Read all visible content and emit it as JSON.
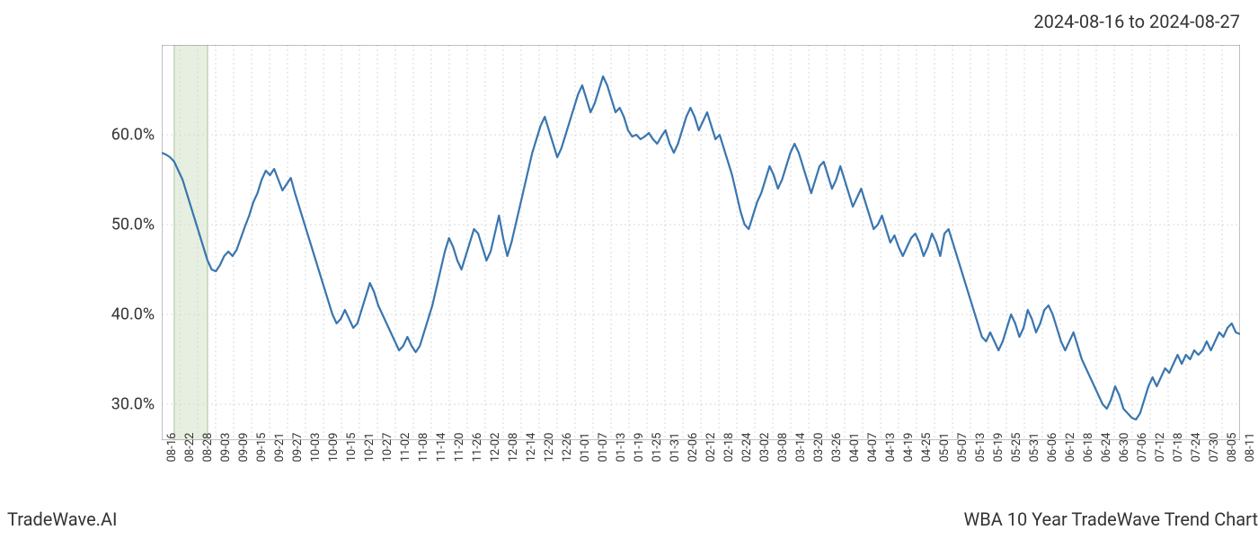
{
  "header": {
    "date_range": "2024-08-16 to 2024-08-27"
  },
  "footer": {
    "brand": "TradeWave.AI",
    "title": "WBA 10 Year TradeWave Trend Chart"
  },
  "chart": {
    "type": "line",
    "background_color": "#ffffff",
    "grid_color": "#d9d9d9",
    "grid_dash": "2,3",
    "border_color": "#808080",
    "line_color": "#3a76af",
    "line_width": 2.2,
    "highlight_fill": "#e7efe1",
    "highlight_border": "#a8c49a",
    "axis_font_size": 18,
    "xtick_font_size": 13,
    "ylim": [
      26,
      70
    ],
    "y_ticks": [
      30,
      40,
      50,
      60
    ],
    "y_tick_labels": [
      "30.0%",
      "40.0%",
      "50.0%",
      "60.0%"
    ],
    "highlight_range_x": [
      3,
      11
    ],
    "x_tick_labels": [
      "08-16",
      "08-22",
      "08-28",
      "09-03",
      "09-09",
      "09-15",
      "09-21",
      "09-27",
      "10-03",
      "10-09",
      "10-15",
      "10-21",
      "10-27",
      "11-02",
      "11-08",
      "11-14",
      "11-20",
      "11-26",
      "12-02",
      "12-08",
      "12-14",
      "12-20",
      "12-26",
      "01-01",
      "01-07",
      "01-13",
      "01-19",
      "01-25",
      "01-31",
      "02-06",
      "02-12",
      "02-18",
      "02-24",
      "03-02",
      "03-08",
      "03-14",
      "03-20",
      "03-26",
      "04-01",
      "04-07",
      "04-13",
      "04-19",
      "04-25",
      "05-01",
      "05-07",
      "05-13",
      "05-19",
      "05-25",
      "05-31",
      "06-06",
      "06-12",
      "06-18",
      "06-24",
      "06-30",
      "07-06",
      "07-12",
      "07-18",
      "07-24",
      "07-30",
      "08-05",
      "08-11"
    ],
    "series": [
      58.0,
      57.8,
      57.5,
      57.0,
      56.0,
      55.0,
      53.5,
      52.0,
      50.5,
      49.0,
      47.5,
      46.0,
      45.0,
      44.8,
      45.5,
      46.5,
      47.0,
      46.5,
      47.2,
      48.5,
      49.8,
      51.0,
      52.5,
      53.5,
      55.0,
      56.0,
      55.5,
      56.2,
      55.0,
      53.8,
      54.5,
      55.2,
      53.5,
      52.0,
      50.5,
      49.0,
      47.5,
      46.0,
      44.5,
      43.0,
      41.5,
      40.0,
      39.0,
      39.5,
      40.5,
      39.5,
      38.5,
      39.0,
      40.5,
      42.0,
      43.5,
      42.5,
      41.0,
      40.0,
      39.0,
      38.0,
      37.0,
      36.0,
      36.5,
      37.5,
      36.5,
      35.8,
      36.5,
      38.0,
      39.5,
      41.0,
      43.0,
      45.0,
      47.0,
      48.5,
      47.5,
      46.0,
      45.0,
      46.5,
      48.0,
      49.5,
      49.0,
      47.5,
      46.0,
      47.0,
      49.0,
      51.0,
      48.5,
      46.5,
      48.0,
      50.0,
      52.0,
      54.0,
      56.0,
      58.0,
      59.5,
      61.0,
      62.0,
      60.5,
      59.0,
      57.5,
      58.5,
      60.0,
      61.5,
      63.0,
      64.5,
      65.5,
      64.0,
      62.5,
      63.5,
      65.0,
      66.5,
      65.5,
      64.0,
      62.5,
      63.0,
      62.0,
      60.5,
      59.8,
      60.0,
      59.5,
      59.8,
      60.2,
      59.5,
      59.0,
      59.8,
      60.5,
      59.0,
      58.0,
      59.0,
      60.5,
      62.0,
      63.0,
      62.0,
      60.5,
      61.5,
      62.5,
      61.0,
      59.5,
      60.0,
      58.5,
      57.0,
      55.5,
      53.5,
      51.5,
      50.0,
      49.5,
      51.0,
      52.5,
      53.5,
      55.0,
      56.5,
      55.5,
      54.0,
      55.0,
      56.5,
      58.0,
      59.0,
      58.0,
      56.5,
      55.0,
      53.5,
      55.0,
      56.5,
      57.0,
      55.5,
      54.0,
      55.0,
      56.5,
      55.0,
      53.5,
      52.0,
      53.0,
      54.0,
      52.5,
      51.0,
      49.5,
      50.0,
      51.0,
      49.5,
      48.0,
      48.8,
      47.5,
      46.5,
      47.5,
      48.5,
      49.0,
      48.0,
      46.5,
      47.5,
      49.0,
      48.0,
      46.5,
      49.0,
      49.5,
      48.0,
      46.5,
      45.0,
      43.5,
      42.0,
      40.5,
      39.0,
      37.5,
      37.0,
      38.0,
      37.0,
      36.0,
      37.0,
      38.5,
      40.0,
      39.0,
      37.5,
      38.5,
      40.5,
      39.5,
      38.0,
      39.0,
      40.5,
      41.0,
      40.0,
      38.5,
      37.0,
      36.0,
      37.0,
      38.0,
      36.5,
      35.0,
      34.0,
      33.0,
      32.0,
      31.0,
      30.0,
      29.5,
      30.5,
      32.0,
      31.0,
      29.5,
      29.0,
      28.5,
      28.3,
      29.0,
      30.5,
      32.0,
      33.0,
      32.0,
      33.0,
      34.0,
      33.5,
      34.5,
      35.5,
      34.5,
      35.5,
      35.0,
      36.0,
      35.5,
      36.0,
      37.0,
      36.0,
      37.0,
      38.0,
      37.5,
      38.5,
      39.0,
      38.0,
      37.8
    ]
  }
}
